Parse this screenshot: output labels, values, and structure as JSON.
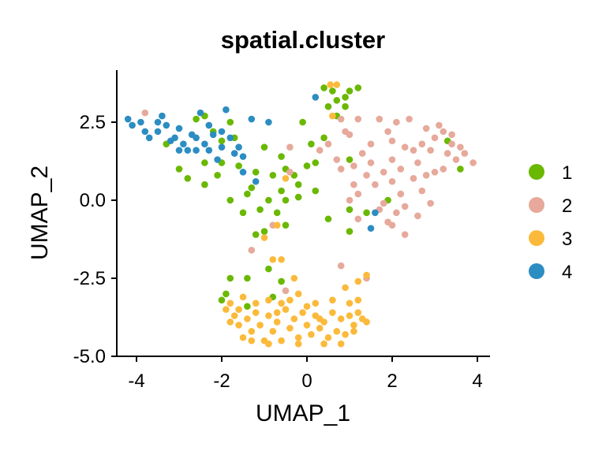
{
  "chart_data": {
    "type": "scatter",
    "title": "spatial.cluster",
    "xlabel": "UMAP_1",
    "ylabel": "UMAP_2",
    "xlim": [
      -4.45,
      4.3
    ],
    "ylim": [
      -5.0,
      4.15
    ],
    "xticks": [
      -4,
      -2,
      0,
      2,
      4
    ],
    "xtick_labels": [
      "-4",
      "-2",
      "0",
      "2",
      "4"
    ],
    "yticks": [
      2.5,
      0.0,
      -2.5,
      -5.0
    ],
    "ytick_labels": [
      "2.5",
      "0.0",
      "-2.5",
      "-5.0"
    ],
    "grid": false,
    "legend_position": "right",
    "series": [
      {
        "name": "1",
        "color": "#6AB800",
        "points": [
          [
            -2.6,
            2.6
          ],
          [
            -2.4,
            2.7
          ],
          [
            -2.2,
            2.2
          ],
          [
            -1.8,
            2.5
          ],
          [
            -1.7,
            2.0
          ],
          [
            -2.4,
            1.2
          ],
          [
            -2.0,
            1.2
          ],
          [
            -3.3,
            1.8
          ],
          [
            -3.0,
            1.0
          ],
          [
            -2.8,
            0.7
          ],
          [
            -2.4,
            0.5
          ],
          [
            -2.1,
            0.8
          ],
          [
            -1.4,
            0.2
          ],
          [
            -1.5,
            -0.4
          ],
          [
            -1.8,
            0.0
          ],
          [
            -1.1,
            -0.3
          ],
          [
            -1.2,
            -1.1
          ],
          [
            -1.3,
            0.4
          ],
          [
            -0.9,
            0.0
          ],
          [
            -0.7,
            -0.4
          ],
          [
            -0.8,
            0.8
          ],
          [
            -0.5,
            1.0
          ],
          [
            -0.6,
            0.3
          ],
          [
            -0.3,
            0.8
          ],
          [
            -0.2,
            0.5
          ],
          [
            0.0,
            1.1
          ],
          [
            0.2,
            0.3
          ],
          [
            -0.1,
            2.5
          ],
          [
            0.1,
            1.8
          ],
          [
            -0.6,
            1.4
          ],
          [
            -1.0,
            1.7
          ],
          [
            -0.5,
            -0.8
          ],
          [
            -1.0,
            -1.0
          ],
          [
            -0.9,
            -2.2
          ],
          [
            -1.4,
            -2.5
          ],
          [
            -1.8,
            -2.5
          ],
          [
            -0.6,
            -2.6
          ],
          [
            -0.8,
            -3.1
          ],
          [
            -1.9,
            -3.0
          ],
          [
            -2.0,
            -3.2
          ],
          [
            -1.4,
            -3.4
          ],
          [
            0.4,
            3.6
          ],
          [
            0.6,
            3.5
          ],
          [
            0.7,
            3.2
          ],
          [
            0.9,
            3.3
          ],
          [
            1.0,
            3.5
          ],
          [
            0.5,
            3.0
          ],
          [
            0.9,
            3.0
          ],
          [
            1.2,
            3.6
          ],
          [
            0.7,
            2.7
          ],
          [
            0.4,
            2.0
          ],
          [
            0.2,
            1.2
          ],
          [
            1.0,
            1.3
          ],
          [
            1.0,
            -0.3
          ],
          [
            1.4,
            -0.4
          ],
          [
            0.5,
            -0.6
          ],
          [
            1.0,
            -1.0
          ],
          [
            3.6,
            1.0
          ],
          [
            3.3,
            1.9
          ],
          [
            1.9,
            0.0
          ],
          [
            -0.5,
            0.0
          ],
          [
            -2.0,
            1.9
          ],
          [
            -1.6,
            1.1
          ],
          [
            -0.2,
            0.1
          ],
          [
            -1.2,
            0.9
          ]
        ]
      },
      {
        "name": "2",
        "color": "#E6A99B",
        "points": [
          [
            0.8,
            2.6
          ],
          [
            0.9,
            2.2
          ],
          [
            0.5,
            1.8
          ],
          [
            0.3,
            1.6
          ],
          [
            0.7,
            1.3
          ],
          [
            0.8,
            1.0
          ],
          [
            1.2,
            2.6
          ],
          [
            1.0,
            2.1
          ],
          [
            1.3,
            1.5
          ],
          [
            1.5,
            1.2
          ],
          [
            1.4,
            0.8
          ],
          [
            1.1,
            0.5
          ],
          [
            1.0,
            0.0
          ],
          [
            1.7,
            2.6
          ],
          [
            1.9,
            2.2
          ],
          [
            2.1,
            2.5
          ],
          [
            2.3,
            1.7
          ],
          [
            2.0,
            1.3
          ],
          [
            1.8,
            0.9
          ],
          [
            1.6,
            0.5
          ],
          [
            2.0,
            0.6
          ],
          [
            2.2,
            0.2
          ],
          [
            1.8,
            -0.1
          ],
          [
            2.1,
            -0.4
          ],
          [
            1.9,
            -0.7
          ],
          [
            2.3,
            -0.2
          ],
          [
            2.5,
            0.7
          ],
          [
            2.6,
            1.2
          ],
          [
            2.8,
            2.3
          ],
          [
            2.9,
            1.6
          ],
          [
            3.0,
            2.0
          ],
          [
            3.2,
            2.2
          ],
          [
            3.3,
            1.5
          ],
          [
            3.4,
            1.8
          ],
          [
            3.5,
            1.3
          ],
          [
            3.6,
            1.7
          ],
          [
            3.4,
            2.1
          ],
          [
            3.2,
            1.0
          ],
          [
            3.0,
            0.9
          ],
          [
            2.7,
            0.3
          ],
          [
            2.9,
            -0.1
          ],
          [
            2.6,
            -0.5
          ],
          [
            2.3,
            -1.1
          ],
          [
            2.0,
            -0.8
          ],
          [
            1.7,
            -0.3
          ],
          [
            1.2,
            -0.6
          ],
          [
            2.4,
            2.6
          ],
          [
            2.7,
            1.8
          ],
          [
            3.9,
            1.2
          ],
          [
            2.5,
            1.6
          ],
          [
            1.5,
            1.8
          ],
          [
            3.7,
            1.5
          ],
          [
            1.2,
            0.2
          ],
          [
            2.2,
            1.0
          ],
          [
            2.8,
            0.8
          ],
          [
            -3.8,
            2.8
          ],
          [
            -0.8,
            -0.8
          ],
          [
            -0.4,
            1.7
          ],
          [
            0.8,
            -2.1
          ],
          [
            -0.5,
            -2.9
          ],
          [
            1.4,
            -2.5
          ],
          [
            -1.3,
            -1.6
          ],
          [
            -0.4,
            0.9
          ],
          [
            3.1,
            2.4
          ],
          [
            2.0,
            1.9
          ],
          [
            1.1,
            1.1
          ]
        ]
      },
      {
        "name": "3",
        "color": "#FBBA3B",
        "points": [
          [
            -1.9,
            -3.5
          ],
          [
            -1.8,
            -3.3
          ],
          [
            -1.7,
            -3.7
          ],
          [
            -1.6,
            -4.0
          ],
          [
            -1.5,
            -4.4
          ],
          [
            -1.4,
            -3.8
          ],
          [
            -1.3,
            -4.2
          ],
          [
            -1.2,
            -3.6
          ],
          [
            -1.1,
            -4.0
          ],
          [
            -1.0,
            -4.5
          ],
          [
            -0.9,
            -3.7
          ],
          [
            -0.8,
            -4.2
          ],
          [
            -0.7,
            -3.9
          ],
          [
            -0.6,
            -4.5
          ],
          [
            -0.5,
            -3.5
          ],
          [
            -0.4,
            -4.1
          ],
          [
            -0.3,
            -3.8
          ],
          [
            -0.2,
            -4.4
          ],
          [
            -0.1,
            -3.6
          ],
          [
            0.0,
            -4.0
          ],
          [
            0.1,
            -4.3
          ],
          [
            0.2,
            -3.7
          ],
          [
            0.3,
            -4.1
          ],
          [
            0.4,
            -3.9
          ],
          [
            0.5,
            -4.4
          ],
          [
            0.6,
            -3.6
          ],
          [
            0.7,
            -4.2
          ],
          [
            0.8,
            -3.8
          ],
          [
            0.9,
            -4.3
          ],
          [
            1.0,
            -3.7
          ],
          [
            1.1,
            -4.0
          ],
          [
            1.2,
            -3.6
          ],
          [
            1.3,
            -3.8
          ],
          [
            1.4,
            -3.9
          ],
          [
            -1.5,
            -3.1
          ],
          [
            -1.2,
            -3.3
          ],
          [
            -0.9,
            -3.2
          ],
          [
            -0.6,
            -3.3
          ],
          [
            -0.2,
            -3.0
          ],
          [
            0.2,
            -3.3
          ],
          [
            0.6,
            -3.2
          ],
          [
            1.0,
            -3.3
          ],
          [
            1.2,
            -2.6
          ],
          [
            1.4,
            -2.4
          ],
          [
            0.9,
            -2.8
          ],
          [
            -0.6,
            -1.9
          ],
          [
            -0.8,
            -1.9
          ],
          [
            -0.3,
            -2.5
          ],
          [
            -1.3,
            -4.5
          ],
          [
            -0.2,
            -4.6
          ],
          [
            0.4,
            -4.6
          ],
          [
            -1.8,
            -3.9
          ],
          [
            -0.9,
            -4.6
          ],
          [
            0.8,
            -4.6
          ],
          [
            -0.4,
            -3.2
          ],
          [
            0.0,
            -3.4
          ],
          [
            -0.7,
            -0.8
          ],
          [
            -1.0,
            -1.2
          ],
          [
            -0.5,
            0.7
          ],
          [
            0.55,
            3.7
          ],
          [
            0.7,
            3.7
          ],
          [
            0.6,
            2.7
          ],
          [
            1.2,
            -3.2
          ],
          [
            -1.6,
            -3.5
          ],
          [
            -0.7,
            -3.6
          ],
          [
            0.3,
            -3.8
          ],
          [
            1.1,
            -4.2
          ]
        ]
      },
      {
        "name": "4",
        "color": "#2C8DC2",
        "points": [
          [
            -4.2,
            2.6
          ],
          [
            -4.1,
            2.4
          ],
          [
            -3.9,
            2.5
          ],
          [
            -3.8,
            2.2
          ],
          [
            -3.7,
            2.0
          ],
          [
            -3.5,
            2.5
          ],
          [
            -3.5,
            2.2
          ],
          [
            -3.4,
            2.7
          ],
          [
            -3.3,
            2.4
          ],
          [
            -3.2,
            1.9
          ],
          [
            -3.1,
            2.0
          ],
          [
            -3.0,
            2.3
          ],
          [
            -2.9,
            1.8
          ],
          [
            -2.8,
            1.6
          ],
          [
            -2.7,
            2.1
          ],
          [
            -2.6,
            2.0
          ],
          [
            -2.5,
            2.8
          ],
          [
            -2.4,
            1.8
          ],
          [
            -2.3,
            1.6
          ],
          [
            -2.3,
            2.4
          ],
          [
            -2.2,
            2.1
          ],
          [
            -2.1,
            1.3
          ],
          [
            -2.0,
            2.2
          ],
          [
            -2.0,
            1.7
          ],
          [
            -1.8,
            2.0
          ],
          [
            -1.7,
            1.5
          ],
          [
            -1.9,
            2.9
          ],
          [
            -1.6,
            1.7
          ],
          [
            -1.5,
            1.4
          ],
          [
            -1.5,
            0.9
          ],
          [
            -1.2,
            0.6
          ],
          [
            -0.9,
            2.5
          ],
          [
            -1.3,
            2.6
          ],
          [
            -2.6,
            1.6
          ],
          [
            -3.0,
            1.6
          ],
          [
            0.2,
            3.3
          ],
          [
            1.6,
            -0.4
          ],
          [
            1.5,
            -0.9
          ]
        ]
      }
    ]
  }
}
